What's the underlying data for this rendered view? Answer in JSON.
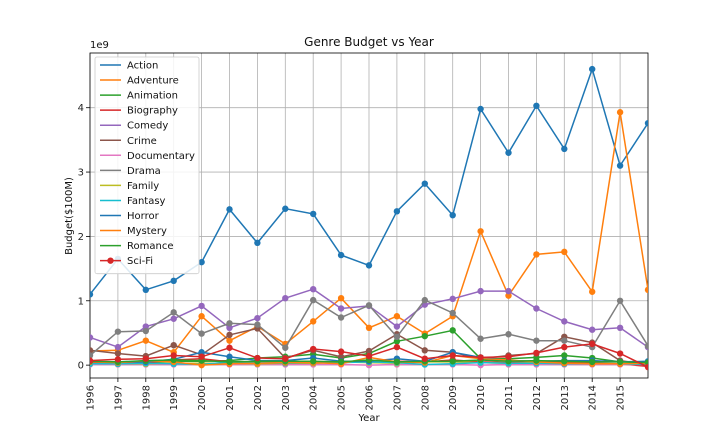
{
  "chart_data": {
    "type": "line",
    "title": "Genre Budget vs Year",
    "xlabel": "Year",
    "ylabel": "Budget($100M)",
    "y_offset_label": "1e9",
    "x": [
      1996,
      1997,
      1998,
      1999,
      2000,
      2001,
      2002,
      2003,
      2004,
      2005,
      2006,
      2007,
      2008,
      2009,
      2010,
      2011,
      2012,
      2013,
      2014,
      2015,
      2016
    ],
    "x_tick_labels": [
      "1996",
      "1997",
      "1998",
      "1999",
      "2000",
      "2001",
      "2002",
      "2003",
      "2004",
      "2005",
      "2006",
      "2007",
      "2008",
      "2009",
      "2010",
      "2011",
      "2012",
      "2013",
      "2014",
      "2015"
    ],
    "y_ticks": [
      0,
      1,
      2,
      3,
      4
    ],
    "y_tick_labels": [
      "0",
      "1",
      "2",
      "3",
      "4"
    ],
    "xlim": [
      1996,
      2016
    ],
    "ylim": [
      -0.2,
      4.85
    ],
    "grid": true,
    "legend_position": "upper-left",
    "series": [
      {
        "name": "Action",
        "color": "#1f77b4",
        "values": [
          1.1,
          1.65,
          1.17,
          1.31,
          1.6,
          2.42,
          1.9,
          2.43,
          2.35,
          1.71,
          1.55,
          2.39,
          2.82,
          2.33,
          3.98,
          3.3,
          4.03,
          3.36,
          4.6,
          3.1,
          3.76
        ]
      },
      {
        "name": "Adventure",
        "color": "#ff7f0e",
        "values": [
          0.22,
          0.23,
          0.38,
          0.2,
          0.76,
          0.38,
          0.6,
          0.33,
          0.68,
          1.04,
          0.58,
          0.76,
          0.49,
          0.76,
          2.08,
          1.08,
          1.72,
          1.76,
          1.14,
          3.93,
          1.17
        ]
      },
      {
        "name": "Animation",
        "color": "#2ca02c",
        "values": [
          0.05,
          0.02,
          0.04,
          0.06,
          0.06,
          0.07,
          0.11,
          0.13,
          0.17,
          0.11,
          0.18,
          0.37,
          0.45,
          0.54,
          0.1,
          0.1,
          0.12,
          0.15,
          0.11,
          0.05,
          0.04
        ]
      },
      {
        "name": "Biography",
        "color": "#d62728",
        "values": [
          0.04,
          0.05,
          0.04,
          0.08,
          0.1,
          0.05,
          0.04,
          0.06,
          0.03,
          0.05,
          0.06,
          0.06,
          0.05,
          0.08,
          0.05,
          0.04,
          0.05,
          0.05,
          0.03,
          0.02,
          -0.02
        ]
      },
      {
        "name": "Comedy",
        "color": "#9467bd",
        "values": [
          0.43,
          0.28,
          0.6,
          0.72,
          0.92,
          0.58,
          0.73,
          1.04,
          1.18,
          0.88,
          0.92,
          0.6,
          0.94,
          1.03,
          1.15,
          1.15,
          0.88,
          0.68,
          0.55,
          0.58,
          0.28
        ]
      },
      {
        "name": "Crime",
        "color": "#8c564b",
        "values": [
          0.23,
          0.18,
          0.14,
          0.31,
          0.16,
          0.47,
          0.57,
          0.11,
          0.23,
          0.13,
          0.22,
          0.48,
          0.23,
          0.2,
          0.1,
          0.15,
          0.18,
          0.44,
          0.35,
          0.07,
          0.01
        ]
      },
      {
        "name": "Documentary",
        "color": "#e377c2",
        "values": [
          0.01,
          0.01,
          0.01,
          0.01,
          0.01,
          0.01,
          0.01,
          0.01,
          0.01,
          0.01,
          0.0,
          0.01,
          0.01,
          0.01,
          0.0,
          0.01,
          0.01,
          0.01,
          0.01,
          0.01,
          0.01
        ]
      },
      {
        "name": "Drama",
        "color": "#7f7f7f",
        "values": [
          0.15,
          0.52,
          0.53,
          0.82,
          0.49,
          0.65,
          0.63,
          0.27,
          1.01,
          0.74,
          0.93,
          0.44,
          1.01,
          0.81,
          0.41,
          0.48,
          0.38,
          0.38,
          0.28,
          1.0,
          0.3
        ]
      },
      {
        "name": "Family",
        "color": "#bcbd22",
        "values": [
          0.02,
          0.02,
          0.02,
          0.03,
          0.03,
          0.03,
          0.02,
          0.03,
          0.03,
          0.05,
          0.04,
          0.03,
          0.05,
          0.05,
          0.04,
          0.03,
          0.04,
          0.03,
          0.02,
          0.02,
          0.02
        ]
      },
      {
        "name": "Fantasy",
        "color": "#17becf",
        "values": [
          0.02,
          0.02,
          0.03,
          0.02,
          0.01,
          0.05,
          0.04,
          0.03,
          0.04,
          0.04,
          0.05,
          0.04,
          0.01,
          0.02,
          0.04,
          0.03,
          0.03,
          0.02,
          0.02,
          0.02,
          0.01
        ]
      },
      {
        "name": "Horror",
        "color": "#1f77b4",
        "values": [
          0.05,
          0.05,
          0.05,
          0.09,
          0.2,
          0.13,
          0.07,
          0.07,
          0.11,
          0.06,
          0.06,
          0.1,
          0.06,
          0.2,
          0.12,
          0.07,
          0.06,
          0.07,
          0.07,
          0.05,
          0.06
        ]
      },
      {
        "name": "Mystery",
        "color": "#ff7f0e",
        "values": [
          0.05,
          0.04,
          0.07,
          0.05,
          0.0,
          0.02,
          0.03,
          0.04,
          0.04,
          0.02,
          0.12,
          0.05,
          0.04,
          0.15,
          0.1,
          0.08,
          0.05,
          0.03,
          0.02,
          0.02,
          0.03
        ]
      },
      {
        "name": "Romance",
        "color": "#2ca02c",
        "values": [
          0.06,
          0.05,
          0.07,
          0.08,
          0.07,
          0.05,
          0.06,
          0.06,
          0.06,
          0.05,
          0.08,
          0.05,
          0.06,
          0.06,
          0.08,
          0.06,
          0.07,
          0.06,
          0.05,
          0.05,
          0.04
        ]
      },
      {
        "name": "Sci-Fi",
        "color": "#d62728",
        "values": [
          0.07,
          0.09,
          0.1,
          0.15,
          0.13,
          0.27,
          0.11,
          0.1,
          0.25,
          0.21,
          0.14,
          0.28,
          0.1,
          0.15,
          0.12,
          0.13,
          0.19,
          0.28,
          0.33,
          0.18,
          -0.03
        ]
      }
    ]
  }
}
